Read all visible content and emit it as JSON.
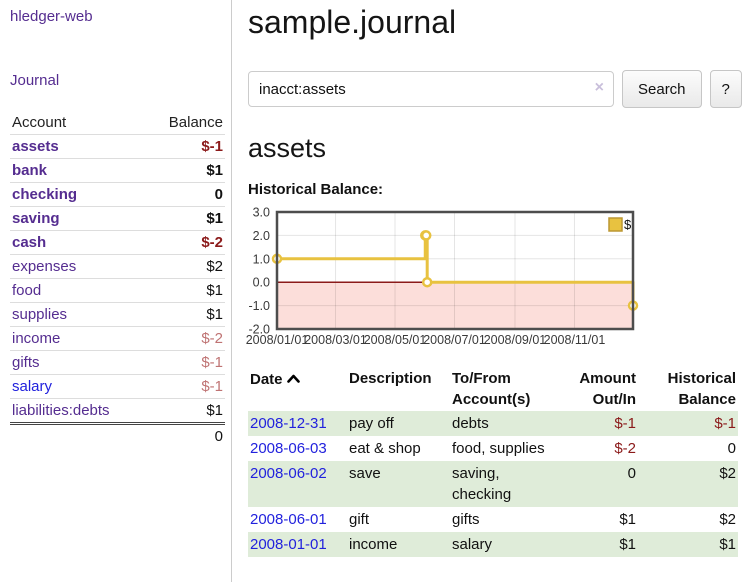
{
  "colors": {
    "accent_purple": "#552d90",
    "link_blue": "#2222dd",
    "negative_strong": "#8b1a1a",
    "negative_muted": "#bf7373",
    "row_stripe_green": "#dfecd9",
    "chart_series_gold": "#e8c240",
    "chart_negative_bg": "#fcdeda",
    "chart_zero_line": "#8b1a1a"
  },
  "sidebar": {
    "app_title": "hledger-web",
    "journal_link": "Journal",
    "accounts": {
      "headers": {
        "account": "Account",
        "balance": "Balance"
      },
      "rows": [
        {
          "name": "assets",
          "balance": "$-1"
        },
        {
          "name": "bank",
          "balance": "$1"
        },
        {
          "name": "checking",
          "balance": "0"
        },
        {
          "name": "saving",
          "balance": "$1"
        },
        {
          "name": "cash",
          "balance": "$-2"
        },
        {
          "name": "expenses",
          "balance": "$2"
        },
        {
          "name": "food",
          "balance": "$1"
        },
        {
          "name": "supplies",
          "balance": "$1"
        },
        {
          "name": "income",
          "balance": "$-2"
        },
        {
          "name": "gifts",
          "balance": "$-1"
        },
        {
          "name": "salary",
          "balance": "$-1"
        },
        {
          "name": "liabilities:debts",
          "balance": "$1"
        }
      ],
      "total": "0"
    }
  },
  "main": {
    "title": "sample.journal",
    "search": {
      "value": "inacct:assets",
      "clear_icon": "×",
      "search_button": "Search",
      "help_button": "?"
    },
    "account_heading": "assets",
    "chart_heading": "Historical Balance:"
  },
  "chart_data": {
    "type": "line",
    "subtype": "step-with-points",
    "title": "Historical Balance",
    "xlim": [
      "2008-01-01",
      "2008-12-31"
    ],
    "ylim": [
      -2,
      3
    ],
    "grid": true,
    "legend_position": "top-right",
    "series": [
      {
        "name": "$",
        "color": "#e8c240",
        "points": [
          [
            "2008-01-01",
            1
          ],
          [
            "2008-06-01",
            2
          ],
          [
            "2008-06-02",
            2
          ],
          [
            "2008-06-03",
            0
          ],
          [
            "2008-12-31",
            -1
          ]
        ]
      }
    ],
    "x_ticks": [
      {
        "date": "2008-01-01",
        "label": "2008/01/01"
      },
      {
        "date": "2008-03-01",
        "label": "2008/03/01"
      },
      {
        "date": "2008-05-01",
        "label": "2008/05/01"
      },
      {
        "date": "2008-07-01",
        "label": "2008/07/01"
      },
      {
        "date": "2008-09-01",
        "label": "2008/09/01"
      },
      {
        "date": "2008-11-01",
        "label": "2008/11/01"
      }
    ],
    "y_ticks": [
      {
        "value": 3,
        "label": "3.0"
      },
      {
        "value": 2,
        "label": "2.0"
      },
      {
        "value": 1,
        "label": "1.0"
      },
      {
        "value": 0,
        "label": "0.0"
      },
      {
        "value": -1,
        "label": "-1.0"
      },
      {
        "value": -2,
        "label": "-2.0"
      }
    ],
    "markings": {
      "below_zero_fill": "#fcdeda",
      "zero_line_color": "#8b1a1a"
    }
  },
  "register": {
    "headers": {
      "date": "Date",
      "description": "Description",
      "accounts": "To/From Account(s)",
      "amount": "Amount Out/In",
      "balance": "Historical Balance"
    },
    "rows": [
      {
        "date": "2008-12-31",
        "description": "pay off",
        "accounts": "debts",
        "amount": "$-1",
        "balance": "$-1"
      },
      {
        "date": "2008-06-03",
        "description": "eat & shop",
        "accounts": "food, supplies",
        "amount": "$-2",
        "balance": "0"
      },
      {
        "date": "2008-06-02",
        "description": "save",
        "accounts": "saving, checking",
        "amount": "0",
        "balance": "$2"
      },
      {
        "date": "2008-06-01",
        "description": "gift",
        "accounts": "gifts",
        "amount": "$1",
        "balance": "$2"
      },
      {
        "date": "2008-01-01",
        "description": "income",
        "accounts": "salary",
        "amount": "$1",
        "balance": "$1"
      }
    ]
  }
}
